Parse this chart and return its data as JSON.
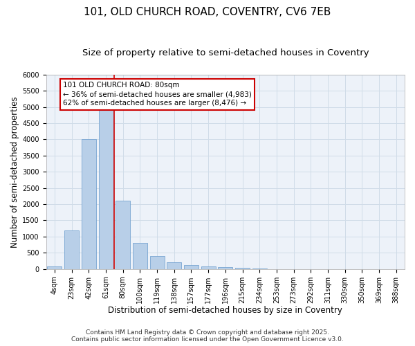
{
  "title_line1": "101, OLD CHURCH ROAD, COVENTRY, CV6 7EB",
  "title_line2": "Size of property relative to semi-detached houses in Coventry",
  "xlabel": "Distribution of semi-detached houses by size in Coventry",
  "ylabel": "Number of semi-detached properties",
  "bar_labels": [
    "4sqm",
    "23sqm",
    "42sqm",
    "61sqm",
    "80sqm",
    "100sqm",
    "119sqm",
    "138sqm",
    "157sqm",
    "177sqm",
    "196sqm",
    "215sqm",
    "234sqm",
    "253sqm",
    "273sqm",
    "292sqm",
    "311sqm",
    "330sqm",
    "350sqm",
    "369sqm",
    "388sqm"
  ],
  "bar_values": [
    70,
    1200,
    4000,
    4900,
    2100,
    800,
    390,
    200,
    130,
    80,
    55,
    30,
    10,
    5,
    2,
    1,
    0,
    0,
    0,
    0,
    0
  ],
  "bar_color": "#b8cfe8",
  "bar_edgecolor": "#6699cc",
  "property_line_index": 4,
  "annotation_title": "101 OLD CHURCH ROAD: 80sqm",
  "annotation_line2": "← 36% of semi-detached houses are smaller (4,983)",
  "annotation_line3": "62% of semi-detached houses are larger (8,476) →",
  "annotation_box_facecolor": "#ffffff",
  "annotation_box_edgecolor": "#cc0000",
  "vline_color": "#cc0000",
  "ylim": [
    0,
    6000
  ],
  "yticks": [
    0,
    500,
    1000,
    1500,
    2000,
    2500,
    3000,
    3500,
    4000,
    4500,
    5000,
    5500,
    6000
  ],
  "grid_color": "#d0dce8",
  "bg_color": "#edf2f9",
  "footer_line1": "Contains HM Land Registry data © Crown copyright and database right 2025.",
  "footer_line2": "Contains public sector information licensed under the Open Government Licence v3.0.",
  "title_fontsize": 11,
  "subtitle_fontsize": 9.5,
  "axis_label_fontsize": 8.5,
  "tick_fontsize": 7,
  "annotation_fontsize": 7.5,
  "footer_fontsize": 6.5
}
